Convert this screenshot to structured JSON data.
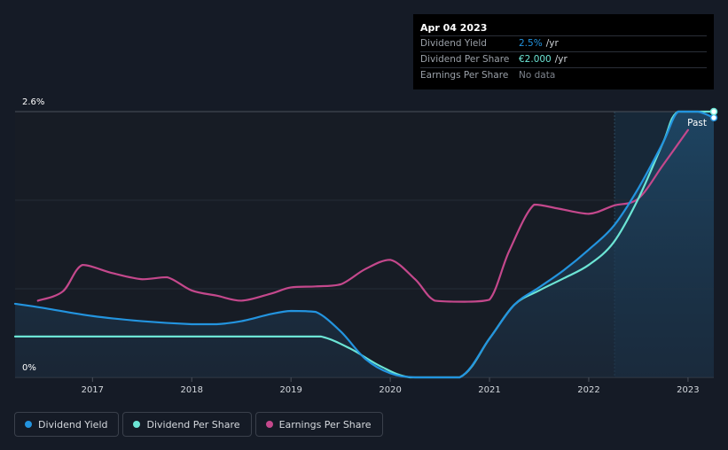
{
  "tooltip": {
    "date": "Apr 04 2023",
    "rows": [
      {
        "label": "Dividend Yield",
        "value": "2.5%",
        "unit": "/yr",
        "color": "#2394df"
      },
      {
        "label": "Dividend Per Share",
        "value": "€2.000",
        "unit": "/yr",
        "color": "#6ce5d5"
      },
      {
        "label": "Earnings Per Share",
        "value": "No data",
        "unit": "",
        "color": "#7d838c"
      }
    ]
  },
  "legend": [
    {
      "label": "Dividend Yield",
      "color": "#2394df"
    },
    {
      "label": "Dividend Per Share",
      "color": "#6ce5d5"
    },
    {
      "label": "Earnings Per Share",
      "color": "#c4488c"
    }
  ],
  "chart_data": {
    "type": "line",
    "x_ticks": [
      "2017",
      "2018",
      "2019",
      "2020",
      "2021",
      "2022",
      "2023"
    ],
    "y_tick_labels": [
      "0%",
      "2.6%"
    ],
    "ylim": [
      0,
      2.6
    ],
    "xlim": [
      2016.22,
      2023.26
    ],
    "past_label": "Past",
    "forecast_start": 2022.26,
    "series": [
      {
        "name": "Dividend Yield",
        "color": "#2394df",
        "points": [
          [
            2016.22,
            0.72
          ],
          [
            2016.5,
            0.68
          ],
          [
            2017.0,
            0.6
          ],
          [
            2017.5,
            0.55
          ],
          [
            2018.0,
            0.52
          ],
          [
            2018.25,
            0.52
          ],
          [
            2018.5,
            0.55
          ],
          [
            2018.8,
            0.62
          ],
          [
            2019.0,
            0.65
          ],
          [
            2019.25,
            0.64
          ],
          [
            2019.5,
            0.45
          ],
          [
            2019.75,
            0.18
          ],
          [
            2020.0,
            0.04
          ],
          [
            2020.25,
            0.0
          ],
          [
            2020.7,
            0.0
          ],
          [
            2021.0,
            0.38
          ],
          [
            2021.25,
            0.71
          ],
          [
            2021.5,
            0.88
          ],
          [
            2021.75,
            1.05
          ],
          [
            2022.0,
            1.25
          ],
          [
            2022.25,
            1.48
          ],
          [
            2022.5,
            1.85
          ],
          [
            2022.75,
            2.3
          ],
          [
            2022.9,
            2.6
          ],
          [
            2023.1,
            2.6
          ],
          [
            2023.26,
            2.54
          ]
        ]
      },
      {
        "name": "Dividend Per Share",
        "color": "#6ce5d5",
        "points": [
          [
            2016.22,
            0.4
          ],
          [
            2017.0,
            0.4
          ],
          [
            2018.0,
            0.4
          ],
          [
            2019.0,
            0.4
          ],
          [
            2019.3,
            0.4
          ],
          [
            2019.6,
            0.28
          ],
          [
            2019.9,
            0.11
          ],
          [
            2020.2,
            0.0
          ],
          [
            2020.7,
            0.0
          ],
          [
            2021.0,
            0.38
          ],
          [
            2021.25,
            0.71
          ],
          [
            2021.5,
            0.85
          ],
          [
            2021.75,
            0.97
          ],
          [
            2022.0,
            1.1
          ],
          [
            2022.25,
            1.32
          ],
          [
            2022.5,
            1.75
          ],
          [
            2022.75,
            2.3
          ],
          [
            2022.9,
            2.6
          ],
          [
            2023.26,
            2.6
          ]
        ]
      },
      {
        "name": "Earnings Per Share",
        "color": "#c4488c",
        "points": [
          [
            2016.45,
            0.75
          ],
          [
            2016.7,
            0.84
          ],
          [
            2016.9,
            1.1
          ],
          [
            2017.2,
            1.02
          ],
          [
            2017.5,
            0.96
          ],
          [
            2017.75,
            0.98
          ],
          [
            2018.0,
            0.85
          ],
          [
            2018.25,
            0.8
          ],
          [
            2018.5,
            0.75
          ],
          [
            2018.8,
            0.82
          ],
          [
            2019.0,
            0.88
          ],
          [
            2019.25,
            0.89
          ],
          [
            2019.5,
            0.91
          ],
          [
            2019.75,
            1.06
          ],
          [
            2020.0,
            1.15
          ],
          [
            2020.25,
            0.96
          ],
          [
            2020.45,
            0.75
          ],
          [
            2020.75,
            0.74
          ],
          [
            2021.0,
            0.76
          ],
          [
            2021.2,
            1.24
          ],
          [
            2021.45,
            1.69
          ],
          [
            2021.7,
            1.65
          ],
          [
            2022.0,
            1.6
          ],
          [
            2022.25,
            1.68
          ],
          [
            2022.5,
            1.75
          ],
          [
            2022.75,
            2.08
          ],
          [
            2023.0,
            2.42
          ]
        ]
      }
    ]
  }
}
